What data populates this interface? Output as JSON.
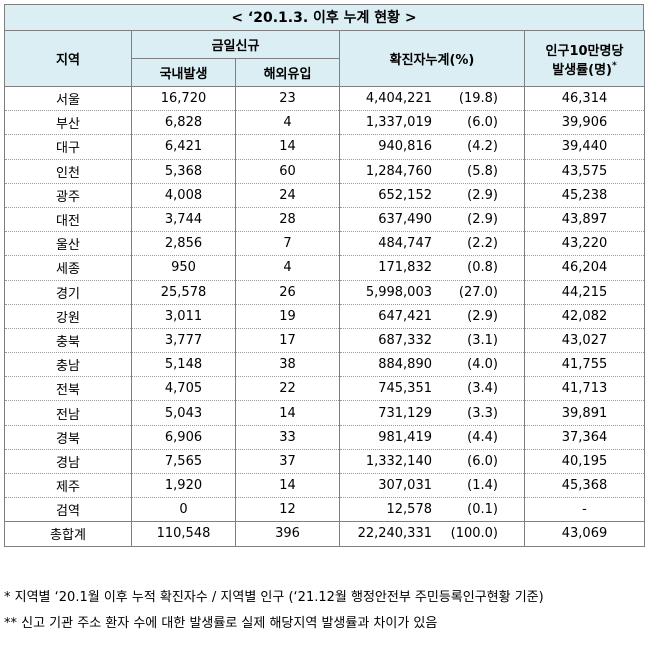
{
  "title": "< ‘20.1.3. 이후 누계 현황 >",
  "headers": {
    "region": "지역",
    "today_new": "금일신규",
    "domestic": "국내발생",
    "overseas": "해외유입",
    "cumulative": "확진자누계(%)",
    "rate_line1": "인구10만명당",
    "rate_line2": "발생률(명)",
    "rate_mark": "*"
  },
  "rows": [
    {
      "region": "서울",
      "domestic": "16,720",
      "overseas": "23",
      "cum": "4,404,221",
      "pct": "(19.8)",
      "rate": "46,314"
    },
    {
      "region": "부산",
      "domestic": "6,828",
      "overseas": "4",
      "cum": "1,337,019",
      "pct": "(6.0)",
      "rate": "39,906"
    },
    {
      "region": "대구",
      "domestic": "6,421",
      "overseas": "14",
      "cum": "940,816",
      "pct": "(4.2)",
      "rate": "39,440"
    },
    {
      "region": "인천",
      "domestic": "5,368",
      "overseas": "60",
      "cum": "1,284,760",
      "pct": "(5.8)",
      "rate": "43,575"
    },
    {
      "region": "광주",
      "domestic": "4,008",
      "overseas": "24",
      "cum": "652,152",
      "pct": "(2.9)",
      "rate": "45,238"
    },
    {
      "region": "대전",
      "domestic": "3,744",
      "overseas": "28",
      "cum": "637,490",
      "pct": "(2.9)",
      "rate": "43,897"
    },
    {
      "region": "울산",
      "domestic": "2,856",
      "overseas": "7",
      "cum": "484,747",
      "pct": "(2.2)",
      "rate": "43,220"
    },
    {
      "region": "세종",
      "domestic": "950",
      "overseas": "4",
      "cum": "171,832",
      "pct": "(0.8)",
      "rate": "46,204"
    },
    {
      "region": "경기",
      "domestic": "25,578",
      "overseas": "26",
      "cum": "5,998,003",
      "pct": "(27.0)",
      "rate": "44,215"
    },
    {
      "region": "강원",
      "domestic": "3,011",
      "overseas": "19",
      "cum": "647,421",
      "pct": "(2.9)",
      "rate": "42,082"
    },
    {
      "region": "충북",
      "domestic": "3,777",
      "overseas": "17",
      "cum": "687,332",
      "pct": "(3.1)",
      "rate": "43,027"
    },
    {
      "region": "충남",
      "domestic": "5,148",
      "overseas": "38",
      "cum": "884,890",
      "pct": "(4.0)",
      "rate": "41,755"
    },
    {
      "region": "전북",
      "domestic": "4,705",
      "overseas": "22",
      "cum": "745,351",
      "pct": "(3.4)",
      "rate": "41,713"
    },
    {
      "region": "전남",
      "domestic": "5,043",
      "overseas": "14",
      "cum": "731,129",
      "pct": "(3.3)",
      "rate": "39,891"
    },
    {
      "region": "경북",
      "domestic": "6,906",
      "overseas": "33",
      "cum": "981,419",
      "pct": "(4.4)",
      "rate": "37,364"
    },
    {
      "region": "경남",
      "domestic": "7,565",
      "overseas": "37",
      "cum": "1,332,140",
      "pct": "(6.0)",
      "rate": "40,195"
    },
    {
      "region": "제주",
      "domestic": "1,920",
      "overseas": "14",
      "cum": "307,031",
      "pct": "(1.4)",
      "rate": "45,368"
    },
    {
      "region": "검역",
      "domestic": "0",
      "overseas": "12",
      "cum": "12,578",
      "pct": "(0.1)",
      "rate": "-"
    },
    {
      "region": "총합계",
      "domestic": "110,548",
      "overseas": "396",
      "cum": "22,240,331",
      "pct": "(100.0)",
      "rate": "43,069"
    }
  ],
  "notes": {
    "note1": "* 지역별 ‘20.1월 이후 누적 확진자수 / 지역별 인구 (‘21.12월 행정안전부 주민등록인구현황 기준)",
    "note2": "** 신고 기관 주소 환자 수에 대한 발생률로 실제 해당지역 발생률과 차이가 있음"
  },
  "colors": {
    "header_bg": "#dbeef4",
    "border": "#7f7f7f"
  }
}
